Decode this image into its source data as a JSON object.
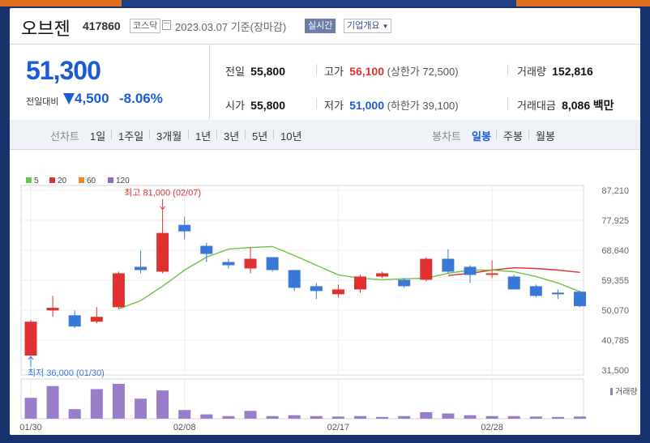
{
  "header": {
    "name": "오브젠",
    "code": "417860",
    "market": "코스닥",
    "date": "2023.03.07",
    "basis": "기준(장마감)",
    "realtime": "실시간",
    "company_btn": "기업개요"
  },
  "quote": {
    "price": "51,300",
    "cmp_label": "전일대비",
    "change": "4,500",
    "change_pct": "-8.06%",
    "prev_label": "전일",
    "prev": "55,800",
    "high_label": "고가",
    "high": "56,100",
    "upper_limit": "(상한가 72,500)",
    "volume_label": "거래량",
    "volume": "152,816",
    "open_label": "시가",
    "open": "55,800",
    "low_label": "저가",
    "low": "51,000",
    "lower_limit": "(하한가 39,100)",
    "amount_label": "거래대금",
    "amount": "8,086",
    "amount_unit": "백만"
  },
  "periods": {
    "line_label": "선차트",
    "line_items": [
      "1일",
      "1주일",
      "3개월",
      "1년",
      "3년",
      "5년",
      "10년"
    ],
    "candle_label": "봉차트",
    "candle_items": [
      "일봉",
      "주봉",
      "월봉"
    ],
    "active_candle": "일봉"
  },
  "colors": {
    "up": "#e03030",
    "down": "#3a78d8",
    "ma5": "#6cc24a",
    "ma20": "#e03030",
    "ma60": "#f08a24",
    "ma120": "#8e6bc6",
    "volume": "#9a7cc8"
  },
  "chart_data": {
    "type": "candlestick",
    "legend": [
      {
        "name": "5",
        "color": "#6cc24a"
      },
      {
        "name": "20",
        "color": "#e03030"
      },
      {
        "name": "60",
        "color": "#f08a24"
      },
      {
        "name": "120",
        "color": "#8e6bc6"
      }
    ],
    "y_ticks": [
      "87,210",
      "77,925",
      "68,640",
      "59,355",
      "50,070",
      "40,785",
      "31,500"
    ],
    "ylim": [
      31500,
      87210
    ],
    "x_ticks": [
      {
        "label": "01/30",
        "index": 0
      },
      {
        "label": "02/08",
        "index": 7
      },
      {
        "label": "02/17",
        "index": 14
      },
      {
        "label": "02/28",
        "index": 21
      }
    ],
    "candles": [
      {
        "o": 36000,
        "h": 47000,
        "l": 36000,
        "c": 46500
      },
      {
        "o": 50000,
        "h": 54500,
        "l": 48000,
        "c": 50800
      },
      {
        "o": 48500,
        "h": 50000,
        "l": 44500,
        "c": 45000
      },
      {
        "o": 46500,
        "h": 51000,
        "l": 46000,
        "c": 48000
      },
      {
        "o": 51000,
        "h": 62000,
        "l": 50500,
        "c": 61500
      },
      {
        "o": 63500,
        "h": 68500,
        "l": 61500,
        "c": 62500
      },
      {
        "o": 62000,
        "h": 81000,
        "l": 61500,
        "c": 74000
      },
      {
        "o": 76500,
        "h": 79000,
        "l": 72000,
        "c": 74500
      },
      {
        "o": 70000,
        "h": 71000,
        "l": 65000,
        "c": 67500
      },
      {
        "o": 65000,
        "h": 66000,
        "l": 63000,
        "c": 64000
      },
      {
        "o": 63000,
        "h": 69500,
        "l": 61500,
        "c": 66000
      },
      {
        "o": 66500,
        "h": 66500,
        "l": 62000,
        "c": 62500
      },
      {
        "o": 62500,
        "h": 62500,
        "l": 56000,
        "c": 57000
      },
      {
        "o": 57500,
        "h": 58500,
        "l": 53500,
        "c": 56000
      },
      {
        "o": 55000,
        "h": 58000,
        "l": 54000,
        "c": 56500
      },
      {
        "o": 56500,
        "h": 61000,
        "l": 55500,
        "c": 60500
      },
      {
        "o": 60500,
        "h": 62000,
        "l": 60000,
        "c": 61500
      },
      {
        "o": 59500,
        "h": 60000,
        "l": 57000,
        "c": 57500
      },
      {
        "o": 59500,
        "h": 66500,
        "l": 59000,
        "c": 66000
      },
      {
        "o": 66000,
        "h": 69000,
        "l": 61500,
        "c": 62000
      },
      {
        "o": 63500,
        "h": 64000,
        "l": 58500,
        "c": 61000
      },
      {
        "o": 61000,
        "h": 65500,
        "l": 60000,
        "c": 61500
      },
      {
        "o": 60500,
        "h": 61000,
        "l": 56500,
        "c": 56500
      },
      {
        "o": 57500,
        "h": 58000,
        "l": 54000,
        "c": 54500
      },
      {
        "o": 55500,
        "h": 56500,
        "l": 53500,
        "c": 55000
      },
      {
        "o": 55800,
        "h": 56100,
        "l": 51000,
        "c": 51300
      }
    ],
    "volume_label": "거래량",
    "volumes": [
      48,
      75,
      22,
      68,
      80,
      46,
      65,
      20,
      10,
      6,
      18,
      6,
      8,
      6,
      5,
      6,
      4,
      6,
      15,
      12,
      8,
      6,
      6,
      5,
      4,
      5
    ],
    "ma5": [
      null,
      null,
      null,
      null,
      50500,
      53000,
      57500,
      62500,
      66500,
      69000,
      69500,
      69800,
      67000,
      64000,
      61000,
      60000,
      59500,
      59800,
      60000,
      61500,
      62500,
      62500,
      62000,
      60500,
      58500,
      55800
    ],
    "ma20": [
      null,
      null,
      null,
      null,
      null,
      null,
      null,
      null,
      null,
      null,
      null,
      null,
      null,
      null,
      null,
      null,
      null,
      null,
      null,
      60800,
      61500,
      62500,
      63200,
      63000,
      62500,
      61800
    ],
    "annotations": [
      {
        "text": "최고 81,000 (02/07)",
        "index": 6,
        "value": 81000,
        "position": "above"
      },
      {
        "text": "최저 36,000 (01/30)",
        "index": 0,
        "value": 36000,
        "position": "below"
      }
    ]
  }
}
